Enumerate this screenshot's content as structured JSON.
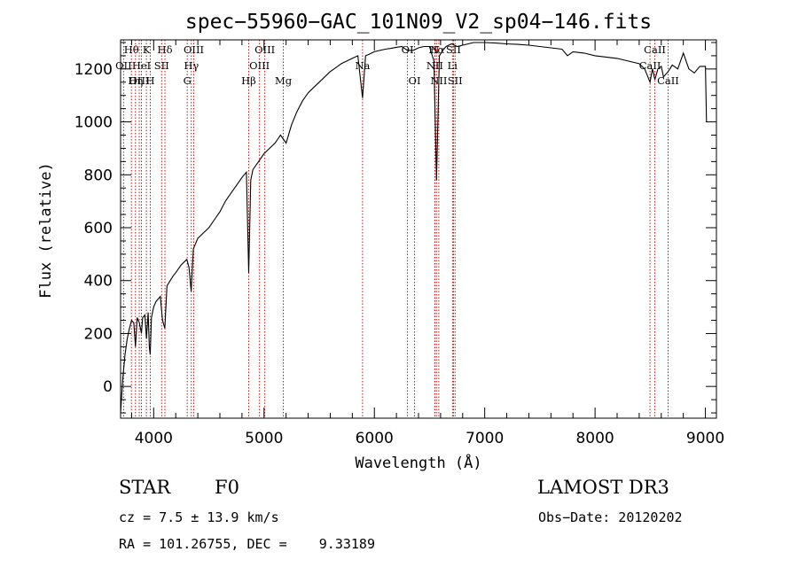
{
  "chart_data": {
    "type": "line",
    "title": "spec−55960−GAC_101N09_V2_sp04−146.fits",
    "xlabel": "Wavelength (Å)",
    "ylabel": "Flux (relative)",
    "xlim": [
      3700,
      9100
    ],
    "ylim": [
      -120,
      1310
    ],
    "x_ticks": [
      4000,
      5000,
      6000,
      7000,
      8000,
      9000
    ],
    "y_ticks": [
      0,
      200,
      400,
      600,
      800,
      1000,
      1200
    ],
    "grid": false,
    "legend": "none",
    "series": [
      {
        "name": "flux",
        "color": "#000000",
        "x": [
          3700,
          3720,
          3740,
          3760,
          3780,
          3800,
          3820,
          3835,
          3850,
          3870,
          3889,
          3900,
          3920,
          3935,
          3950,
          3960,
          3968,
          3980,
          4000,
          4020,
          4040,
          4060,
          4080,
          4101,
          4120,
          4150,
          4180,
          4200,
          4250,
          4300,
          4320,
          4340,
          4360,
          4380,
          4400,
          4450,
          4500,
          4550,
          4600,
          4650,
          4700,
          4750,
          4800,
          4840,
          4861,
          4880,
          4900,
          4950,
          5000,
          5050,
          5100,
          5150,
          5200,
          5250,
          5300,
          5350,
          5400,
          5450,
          5500,
          5550,
          5600,
          5650,
          5700,
          5750,
          5800,
          5850,
          5893,
          5920,
          5950,
          6000,
          6050,
          6100,
          6150,
          6200,
          6250,
          6300,
          6350,
          6400,
          6450,
          6500,
          6540,
          6563,
          6590,
          6620,
          6650,
          6700,
          6750,
          6800,
          6850,
          6900,
          7000,
          7100,
          7200,
          7300,
          7400,
          7500,
          7600,
          7700,
          7750,
          7800,
          7900,
          8000,
          8100,
          8200,
          8300,
          8400,
          8450,
          8498,
          8520,
          8542,
          8570,
          8600,
          8620,
          8662,
          8700,
          8750,
          8800,
          8850,
          8900,
          8950,
          9000,
          9010
        ],
        "y": [
          -100,
          30,
          120,
          180,
          220,
          250,
          240,
          150,
          260,
          240,
          200,
          260,
          270,
          180,
          280,
          150,
          120,
          260,
          300,
          320,
          330,
          340,
          250,
          220,
          380,
          400,
          420,
          430,
          460,
          480,
          450,
          360,
          520,
          540,
          560,
          580,
          600,
          630,
          660,
          700,
          730,
          760,
          790,
          810,
          430,
          780,
          820,
          850,
          880,
          900,
          920,
          950,
          920,
          990,
          1040,
          1080,
          1110,
          1130,
          1150,
          1170,
          1190,
          1205,
          1220,
          1230,
          1240,
          1250,
          1090,
          1250,
          1255,
          1265,
          1270,
          1275,
          1278,
          1282,
          1285,
          1270,
          1270,
          1280,
          1285,
          1285,
          1230,
          780,
          1250,
          1270,
          1285,
          1295,
          1285,
          1290,
          1295,
          1300,
          1300,
          1298,
          1295,
          1293,
          1290,
          1285,
          1280,
          1275,
          1250,
          1265,
          1260,
          1250,
          1245,
          1240,
          1230,
          1220,
          1200,
          1150,
          1200,
          1160,
          1200,
          1210,
          1170,
          1190,
          1215,
          1200,
          1260,
          1200,
          1185,
          1210,
          1210,
          1000
        ]
      }
    ],
    "line_markers": [
      {
        "label": "Hθ",
        "wavelength": 3798,
        "row": 1
      },
      {
        "label": "OII",
        "wavelength": 3727,
        "row": 2
      },
      {
        "label": "OIII",
        "wavelength": 3869,
        "row": 3
      },
      {
        "label": "K",
        "wavelength": 3934,
        "row": 1
      },
      {
        "label": "HeI",
        "wavelength": 3889,
        "row": 2
      },
      {
        "label": "Hη",
        "wavelength": 3835,
        "row": 3
      },
      {
        "label": "SII",
        "wavelength": 4072,
        "row": 2
      },
      {
        "label": "H",
        "wavelength": 3969,
        "row": 3
      },
      {
        "label": "Hδ",
        "wavelength": 4102,
        "row": 1
      },
      {
        "label": "OIII",
        "wavelength": 4363,
        "row": 1
      },
      {
        "label": "Hγ",
        "wavelength": 4341,
        "row": 2
      },
      {
        "label": "G",
        "wavelength": 4304,
        "row": 3
      },
      {
        "label": "Hβ",
        "wavelength": 4861,
        "row": 3
      },
      {
        "label": "OIII",
        "wavelength": 5007,
        "row": 1
      },
      {
        "label": "OIII",
        "wavelength": 4959,
        "row": 2
      },
      {
        "label": "Mg",
        "wavelength": 5175,
        "row": 3
      },
      {
        "label": "Na",
        "wavelength": 5893,
        "row": 2
      },
      {
        "label": "OI",
        "wavelength": 6300,
        "row": 1
      },
      {
        "label": "OI",
        "wavelength": 6364,
        "row": 3
      },
      {
        "label": "N",
        "wavelength": 6548,
        "row": 1
      },
      {
        "label": "Hα",
        "wavelength": 6563,
        "row": 1
      },
      {
        "label": "SII",
        "wavelength": 6717,
        "row": 1
      },
      {
        "label": "NII",
        "wavelength": 6548,
        "row": 2
      },
      {
        "label": "Li",
        "wavelength": 6708,
        "row": 2
      },
      {
        "label": "NII",
        "wavelength": 6584,
        "row": 3
      },
      {
        "label": "SII",
        "wavelength": 6731,
        "row": 3
      },
      {
        "label": "CaII",
        "wavelength": 8542,
        "row": 1
      },
      {
        "label": "CaII",
        "wavelength": 8498,
        "row": 2
      },
      {
        "label": "CaII",
        "wavelength": 8662,
        "row": 3
      }
    ]
  },
  "info": {
    "class_label": "STAR",
    "subclass": "F0",
    "survey": "LAMOST DR3",
    "redshift": "cz = 7.5 ± 13.9 km/s",
    "obs_date": "Obs−Date: 20120202",
    "coords": "RA = 101.26755, DEC =    9.33189"
  }
}
